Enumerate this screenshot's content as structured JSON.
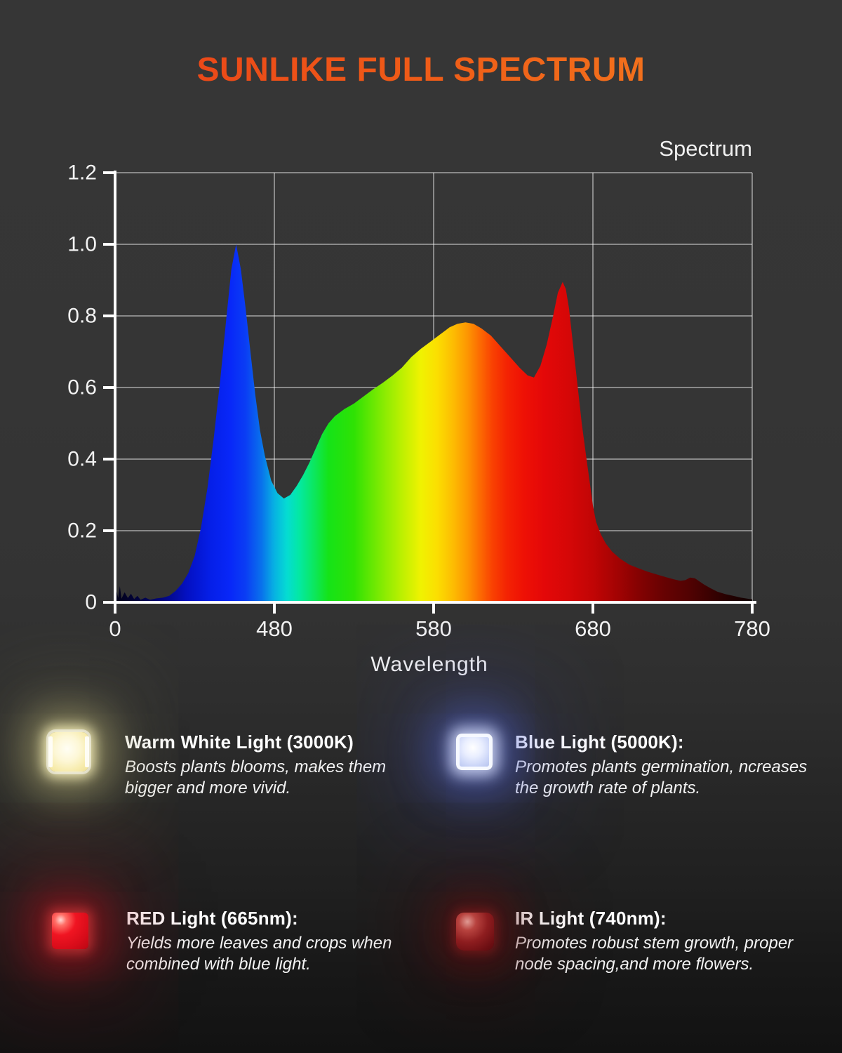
{
  "title": "SUNLIKE FULL SPECTRUM",
  "colors": {
    "title_gradient_from": "#e8391a",
    "title_gradient_to": "#f58220",
    "background": "#343434",
    "axis": "#ffffff",
    "grid": "rgba(255,255,255,0.42)",
    "text": "#f2f2f2"
  },
  "chart_data": {
    "type": "area",
    "series_label": "Spectrum",
    "xlabel": "Wavelength",
    "ylabel": "",
    "ylim": [
      0,
      1.2
    ],
    "x_range_nm": [
      380,
      780
    ],
    "grid": true,
    "x_ticks": [
      {
        "label": "0",
        "nm": 380
      },
      {
        "label": "480",
        "nm": 480
      },
      {
        "label": "580",
        "nm": 580
      },
      {
        "label": "680",
        "nm": 680
      },
      {
        "label": "780",
        "nm": 780
      }
    ],
    "y_ticks": [
      {
        "label": "0",
        "v": 0
      },
      {
        "label": "0.2",
        "v": 0.2
      },
      {
        "label": "0.4",
        "v": 0.4
      },
      {
        "label": "0.6",
        "v": 0.6
      },
      {
        "label": "0.8",
        "v": 0.8
      },
      {
        "label": "1.0",
        "v": 1.0
      },
      {
        "label": "1.2",
        "v": 1.2
      }
    ],
    "gradient_stops": [
      [
        380,
        "#010116"
      ],
      [
        395,
        "#02033f"
      ],
      [
        410,
        "#03077f"
      ],
      [
        425,
        "#0410c2"
      ],
      [
        440,
        "#051fe8"
      ],
      [
        452,
        "#0827f8"
      ],
      [
        462,
        "#0a3df4"
      ],
      [
        472,
        "#0972ec"
      ],
      [
        480,
        "#07b2e2"
      ],
      [
        488,
        "#05dcd2"
      ],
      [
        496,
        "#04e9a0"
      ],
      [
        505,
        "#0ce75e"
      ],
      [
        514,
        "#15e318"
      ],
      [
        530,
        "#2fe204"
      ],
      [
        546,
        "#7cea02"
      ],
      [
        560,
        "#bcf001"
      ],
      [
        572,
        "#f0f201"
      ],
      [
        582,
        "#fbdf01"
      ],
      [
        592,
        "#fdbd02"
      ],
      [
        601,
        "#fd9702"
      ],
      [
        609,
        "#fc6b02"
      ],
      [
        617,
        "#f94102"
      ],
      [
        626,
        "#f42303"
      ],
      [
        637,
        "#ee1005"
      ],
      [
        650,
        "#e30808"
      ],
      [
        665,
        "#d50707"
      ],
      [
        680,
        "#c10505"
      ],
      [
        695,
        "#a30303"
      ],
      [
        710,
        "#820202"
      ],
      [
        725,
        "#660202"
      ],
      [
        740,
        "#520202"
      ],
      [
        752,
        "#3d0101"
      ],
      [
        764,
        "#270101"
      ],
      [
        775,
        "#170101"
      ],
      [
        780,
        "#120101"
      ]
    ],
    "series": [
      {
        "name": "spectrum",
        "points": [
          [
            380,
            0.005
          ],
          [
            381,
            0.03
          ],
          [
            382,
            0.012
          ],
          [
            383,
            0.045
          ],
          [
            384,
            0.01
          ],
          [
            386,
            0.028
          ],
          [
            388,
            0.012
          ],
          [
            390,
            0.024
          ],
          [
            392,
            0.009
          ],
          [
            394,
            0.018
          ],
          [
            396,
            0.007
          ],
          [
            399,
            0.013
          ],
          [
            402,
            0.007
          ],
          [
            406,
            0.011
          ],
          [
            410,
            0.013
          ],
          [
            414,
            0.018
          ],
          [
            418,
            0.032
          ],
          [
            422,
            0.052
          ],
          [
            426,
            0.082
          ],
          [
            430,
            0.13
          ],
          [
            434,
            0.21
          ],
          [
            438,
            0.32
          ],
          [
            442,
            0.46
          ],
          [
            446,
            0.62
          ],
          [
            450,
            0.8
          ],
          [
            453,
            0.93
          ],
          [
            456,
            1.0
          ],
          [
            459,
            0.93
          ],
          [
            462,
            0.82
          ],
          [
            465,
            0.7
          ],
          [
            468,
            0.58
          ],
          [
            471,
            0.48
          ],
          [
            474,
            0.41
          ],
          [
            478,
            0.34
          ],
          [
            482,
            0.305
          ],
          [
            486,
            0.29
          ],
          [
            490,
            0.3
          ],
          [
            494,
            0.325
          ],
          [
            498,
            0.355
          ],
          [
            502,
            0.39
          ],
          [
            506,
            0.43
          ],
          [
            510,
            0.47
          ],
          [
            514,
            0.5
          ],
          [
            518,
            0.52
          ],
          [
            524,
            0.54
          ],
          [
            530,
            0.555
          ],
          [
            536,
            0.575
          ],
          [
            542,
            0.595
          ],
          [
            548,
            0.613
          ],
          [
            554,
            0.633
          ],
          [
            560,
            0.655
          ],
          [
            566,
            0.685
          ],
          [
            572,
            0.708
          ],
          [
            578,
            0.728
          ],
          [
            584,
            0.748
          ],
          [
            590,
            0.768
          ],
          [
            595,
            0.778
          ],
          [
            600,
            0.782
          ],
          [
            605,
            0.778
          ],
          [
            610,
            0.765
          ],
          [
            616,
            0.745
          ],
          [
            622,
            0.715
          ],
          [
            628,
            0.685
          ],
          [
            634,
            0.655
          ],
          [
            639,
            0.634
          ],
          [
            643,
            0.628
          ],
          [
            647,
            0.66
          ],
          [
            651,
            0.72
          ],
          [
            655,
            0.8
          ],
          [
            658,
            0.865
          ],
          [
            661,
            0.895
          ],
          [
            663,
            0.875
          ],
          [
            665,
            0.82
          ],
          [
            667,
            0.74
          ],
          [
            670,
            0.62
          ],
          [
            673,
            0.5
          ],
          [
            676,
            0.4
          ],
          [
            678,
            0.335
          ],
          [
            680,
            0.27
          ],
          [
            682,
            0.225
          ],
          [
            685,
            0.19
          ],
          [
            688,
            0.165
          ],
          [
            692,
            0.142
          ],
          [
            697,
            0.122
          ],
          [
            703,
            0.105
          ],
          [
            708,
            0.096
          ],
          [
            714,
            0.086
          ],
          [
            720,
            0.078
          ],
          [
            726,
            0.07
          ],
          [
            731,
            0.064
          ],
          [
            735,
            0.06
          ],
          [
            738,
            0.062
          ],
          [
            741,
            0.069
          ],
          [
            744,
            0.067
          ],
          [
            747,
            0.058
          ],
          [
            750,
            0.049
          ],
          [
            754,
            0.039
          ],
          [
            758,
            0.03
          ],
          [
            763,
            0.023
          ],
          [
            768,
            0.018
          ],
          [
            773,
            0.013
          ],
          [
            780,
            0.008
          ]
        ]
      }
    ]
  },
  "legend_items": [
    {
      "icon": "warm-white-led-chip",
      "title": "Warm White Light (3000K)",
      "desc": "Boosts plants blooms, makes them\nbigger and more vivid."
    },
    {
      "icon": "blue-led-chip",
      "title": "Blue Light (5000K):",
      "desc": "Promotes plants germination, ncreases\nthe growth rate of plants."
    },
    {
      "icon": "red-led-chip",
      "title": "RED Light (665nm):",
      "desc": "Yields more leaves and crops when\ncombined with blue light."
    },
    {
      "icon": "ir-led-chip",
      "title": "IR Light (740nm):",
      "desc": "Promotes robust stem growth, proper\nnode spacing,and more flowers."
    }
  ]
}
